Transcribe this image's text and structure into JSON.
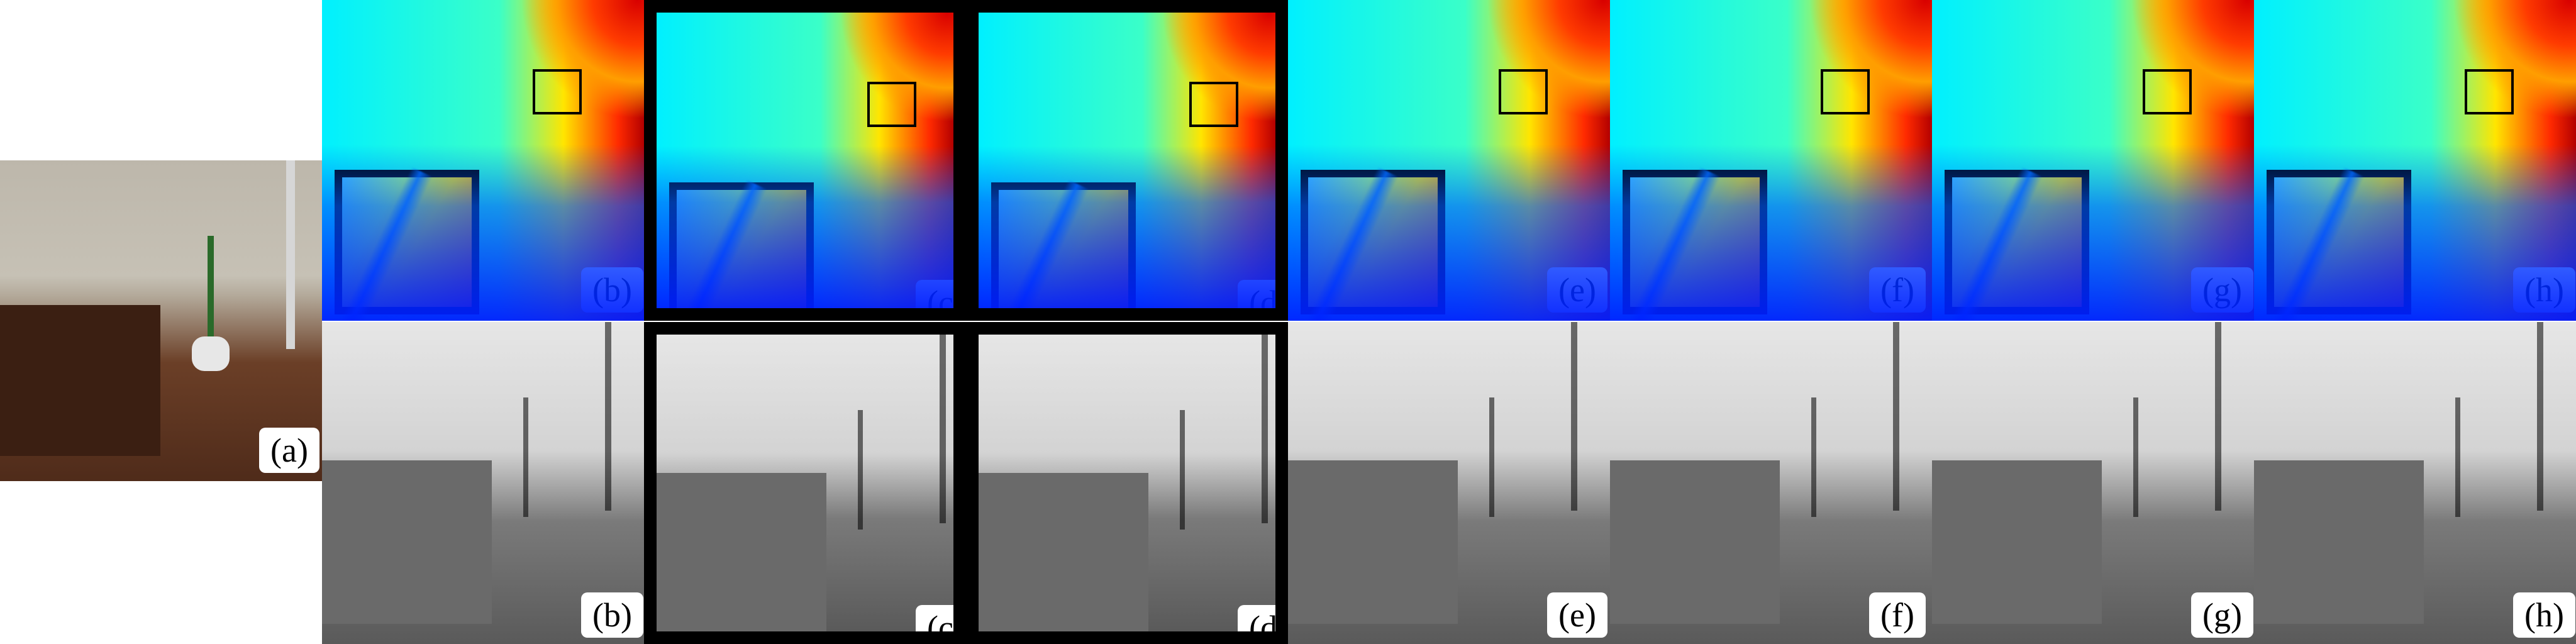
{
  "figure": {
    "panel_labels": {
      "a": "(a)",
      "b": "(b)",
      "c": "(c)",
      "d": "(d)",
      "e": "(e)",
      "f": "(f)",
      "g": "(g)",
      "h": "(h)"
    }
  },
  "colors": {
    "background": "#ffffff",
    "border": "#000000"
  }
}
